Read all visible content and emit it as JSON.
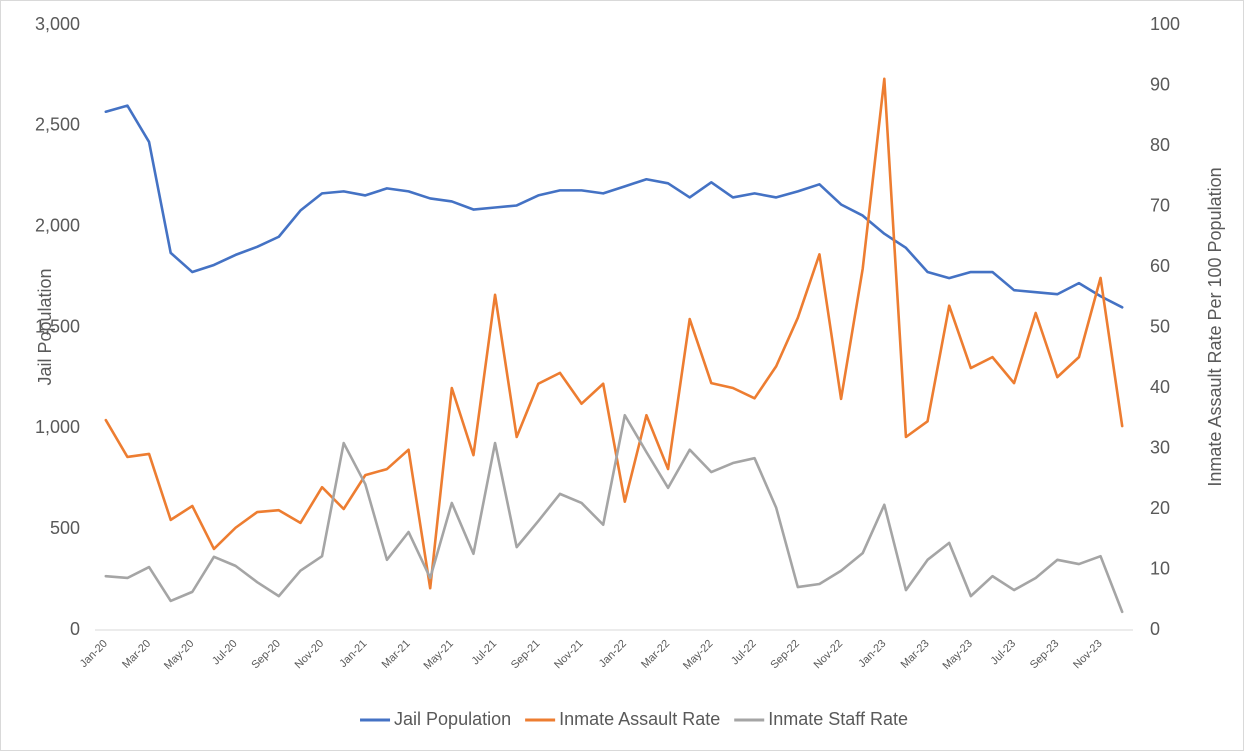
{
  "chart_data": {
    "type": "line",
    "categories": [
      "Jan-20",
      null,
      "Mar-20",
      null,
      "May-20",
      null,
      "Jul-20",
      null,
      "Sep-20",
      null,
      "Nov-20",
      null,
      "Jan-21",
      null,
      "Mar-21",
      null,
      "May-21",
      null,
      "Jul-21",
      null,
      "Sep-21",
      null,
      "Nov-21",
      null,
      "Jan-22",
      null,
      "Mar-22",
      null,
      "May-22",
      null,
      "Jul-22",
      null,
      "Sep-22",
      null,
      "Nov-22",
      null,
      "Jan-23",
      null,
      "Mar-23",
      null,
      "May-23",
      null,
      "Jul-23",
      null,
      "Sep-23",
      null,
      "Nov-23",
      null
    ],
    "series": [
      {
        "name": "Jail Population",
        "color": "#4472c4",
        "axis": "y",
        "values": [
          2570,
          2600,
          2420,
          1870,
          1775,
          1810,
          1860,
          1900,
          1950,
          2080,
          2165,
          2175,
          2155,
          2190,
          2175,
          2140,
          2125,
          2085,
          2095,
          2105,
          2155,
          2180,
          2180,
          2165,
          2200,
          2235,
          2215,
          2145,
          2220,
          2145,
          2165,
          2145,
          2175,
          2210,
          2110,
          2055,
          1965,
          1895,
          1775,
          1745,
          1775,
          1775,
          1685,
          1675,
          1665,
          1720,
          1655,
          1600
        ]
      },
      {
        "name": "Inmate Assault Rate",
        "color": "#ed7d31",
        "axis": "y2",
        "values": [
          34.7,
          28.6,
          29.1,
          18.2,
          20.5,
          13.4,
          16.9,
          19.5,
          19.8,
          17.7,
          23.6,
          20.0,
          25.6,
          26.6,
          29.8,
          6.9,
          40.0,
          28.9,
          55.4,
          31.9,
          40.7,
          42.5,
          37.4,
          40.7,
          21.2,
          35.5,
          26.6,
          51.4,
          40.8,
          40.0,
          38.3,
          43.6,
          51.6,
          62.1,
          38.2,
          59.7,
          91.1,
          31.9,
          34.5,
          53.6,
          43.3,
          45.1,
          40.8,
          52.4,
          41.8,
          45.1,
          58.2,
          33.7
        ]
      },
      {
        "name": "Inmate Staff Rate",
        "color": "#a5a5a5",
        "axis": "y2",
        "values": [
          8.9,
          8.6,
          10.4,
          4.8,
          6.3,
          12.1,
          10.6,
          7.9,
          5.6,
          9.8,
          12.2,
          30.9,
          24.1,
          11.6,
          16.2,
          8.6,
          21.0,
          12.6,
          30.9,
          13.7,
          18.0,
          22.5,
          21.0,
          17.4,
          35.5,
          29.4,
          23.5,
          29.8,
          26.1,
          27.6,
          28.4,
          20.2,
          7.1,
          7.6,
          9.8,
          12.7,
          20.7,
          6.6,
          11.6,
          14.4,
          5.6,
          8.9,
          6.6,
          8.6,
          11.6,
          10.9,
          12.2,
          3.0
        ]
      }
    ],
    "ylabel": "Jail Population",
    "y2label": "Inmate Assault Rate Per 100 Population",
    "ylim": [
      0,
      3000
    ],
    "yticks": [
      0,
      500,
      {
        "value": 1000,
        "label": "1,000"
      },
      {
        "value": 1500,
        "label": "1,500"
      },
      {
        "value": 2000,
        "label": "2,000"
      },
      {
        "value": 2500,
        "label": "2,500"
      },
      {
        "value": 3000,
        "label": "3,000"
      }
    ],
    "y2lim": [
      0,
      100
    ],
    "y2ticks": [
      0,
      10,
      20,
      30,
      40,
      50,
      60,
      70,
      80,
      90,
      100
    ],
    "grid": false,
    "legend": "bottom"
  }
}
